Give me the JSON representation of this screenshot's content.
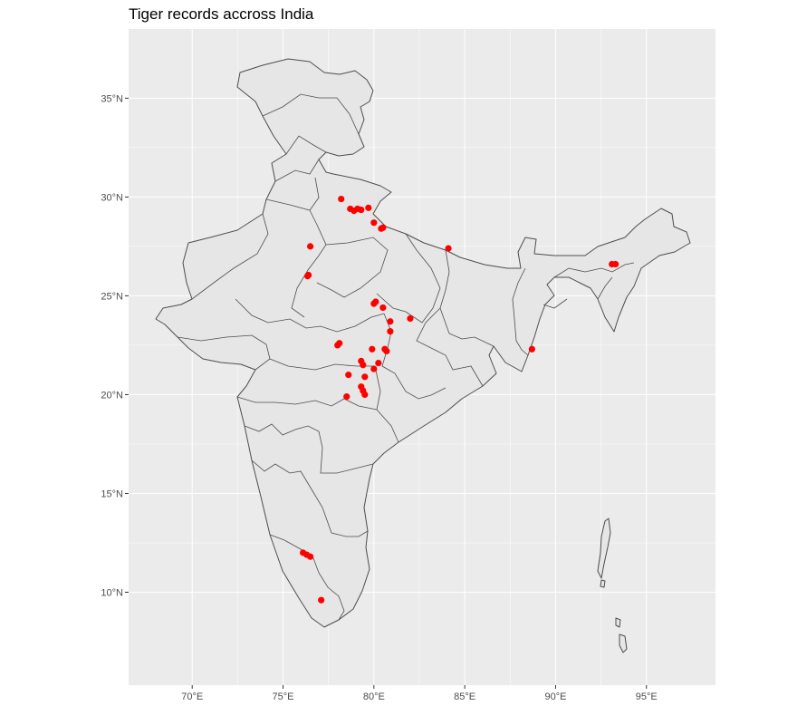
{
  "chart_data": {
    "type": "scatter",
    "title": "Tiger records accross India",
    "xlabel": "",
    "ylabel": "",
    "xlim": [
      66.5,
      98.8
    ],
    "ylim": [
      5.3,
      38.5
    ],
    "grid": true,
    "legend": "none",
    "panel_color": "#ebebeb",
    "grid_color": "#ffffff",
    "land_fill": "#e6e6e6",
    "border_color": "#4d4d4d",
    "point_color": "#ff0000",
    "x_ticks": [
      {
        "value": 70,
        "label": "70°E"
      },
      {
        "value": 75,
        "label": "75°E"
      },
      {
        "value": 80,
        "label": "80°E"
      },
      {
        "value": 85,
        "label": "85°E"
      },
      {
        "value": 90,
        "label": "90°E"
      },
      {
        "value": 95,
        "label": "95°E"
      }
    ],
    "y_ticks": [
      {
        "value": 10,
        "label": "10°N"
      },
      {
        "value": 15,
        "label": "15°N"
      },
      {
        "value": 20,
        "label": "20°N"
      },
      {
        "value": 25,
        "label": "25°N"
      },
      {
        "value": 30,
        "label": "30°N"
      },
      {
        "value": 35,
        "label": "35°N"
      }
    ],
    "points": [
      {
        "lon": 78.2,
        "lat": 29.9
      },
      {
        "lon": 78.7,
        "lat": 29.4
      },
      {
        "lon": 78.9,
        "lat": 29.3
      },
      {
        "lon": 79.1,
        "lat": 29.4
      },
      {
        "lon": 79.3,
        "lat": 29.35
      },
      {
        "lon": 79.7,
        "lat": 29.45
      },
      {
        "lon": 80.0,
        "lat": 28.7
      },
      {
        "lon": 80.4,
        "lat": 28.4
      },
      {
        "lon": 80.5,
        "lat": 28.45
      },
      {
        "lon": 84.1,
        "lat": 27.4
      },
      {
        "lon": 76.5,
        "lat": 27.5
      },
      {
        "lon": 76.35,
        "lat": 26.0
      },
      {
        "lon": 76.4,
        "lat": 26.05
      },
      {
        "lon": 93.1,
        "lat": 26.6
      },
      {
        "lon": 93.3,
        "lat": 26.6
      },
      {
        "lon": 80.0,
        "lat": 24.6
      },
      {
        "lon": 80.1,
        "lat": 24.7
      },
      {
        "lon": 80.5,
        "lat": 24.4
      },
      {
        "lon": 80.9,
        "lat": 23.7
      },
      {
        "lon": 80.9,
        "lat": 23.2
      },
      {
        "lon": 82.0,
        "lat": 23.85
      },
      {
        "lon": 78.0,
        "lat": 22.5
      },
      {
        "lon": 78.1,
        "lat": 22.6
      },
      {
        "lon": 79.9,
        "lat": 22.3
      },
      {
        "lon": 80.6,
        "lat": 22.3
      },
      {
        "lon": 80.7,
        "lat": 22.2
      },
      {
        "lon": 79.3,
        "lat": 21.7
      },
      {
        "lon": 79.4,
        "lat": 21.5
      },
      {
        "lon": 80.25,
        "lat": 21.6
      },
      {
        "lon": 78.6,
        "lat": 21.0
      },
      {
        "lon": 79.5,
        "lat": 20.9
      },
      {
        "lon": 80.0,
        "lat": 21.3
      },
      {
        "lon": 79.3,
        "lat": 20.4
      },
      {
        "lon": 79.4,
        "lat": 20.2
      },
      {
        "lon": 79.5,
        "lat": 20.0
      },
      {
        "lon": 78.5,
        "lat": 19.9
      },
      {
        "lon": 88.7,
        "lat": 22.3
      },
      {
        "lon": 76.1,
        "lat": 12.0
      },
      {
        "lon": 76.3,
        "lat": 11.9
      },
      {
        "lon": 76.5,
        "lat": 11.8
      },
      {
        "lon": 77.1,
        "lat": 9.6
      }
    ]
  }
}
